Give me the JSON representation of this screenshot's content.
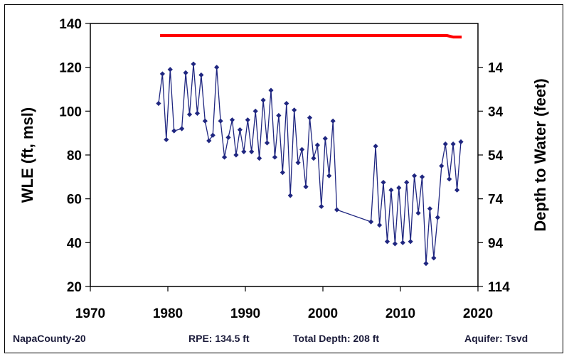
{
  "chart_data": {
    "type": "line",
    "ylabel": "WLE (ft, msl)",
    "y2label": "Depth to Water (feet)",
    "xlim": [
      1970,
      2020
    ],
    "ylim": [
      20,
      140
    ],
    "x_ticks": [
      "1970",
      "1980",
      "1990",
      "2000",
      "2010",
      "2020"
    ],
    "y_ticks": [
      "20",
      "40",
      "60",
      "80",
      "100",
      "120",
      "140"
    ],
    "y2_ticks": [
      "114",
      "94",
      "74",
      "54",
      "34",
      "14"
    ],
    "series": [
      {
        "color": "#ff0000",
        "x": [
          1979,
          2016,
          2016.8,
          2017.9
        ],
        "y": [
          134.5,
          134.5,
          133.8,
          133.8
        ]
      },
      {
        "color": "#1f2680",
        "marker": "diamond",
        "x": [
          1978.8,
          1979.3,
          1979.8,
          1980.3,
          1980.8,
          1981.8,
          1982.3,
          1982.8,
          1983.3,
          1983.8,
          1984.3,
          1984.8,
          1985.3,
          1985.8,
          1986.3,
          1986.8,
          1987.3,
          1987.8,
          1988.3,
          1988.8,
          1989.3,
          1989.8,
          1990.3,
          1990.8,
          1991.3,
          1991.8,
          1992.3,
          1992.8,
          1993.3,
          1993.8,
          1994.3,
          1994.8,
          1995.3,
          1995.8,
          1996.3,
          1996.8,
          1997.3,
          1997.8,
          1998.3,
          1998.8,
          1999.3,
          1999.8,
          2000.3,
          2000.8,
          2001.3,
          2001.8,
          2006.2,
          2006.8,
          2007.3,
          2007.8,
          2008.3,
          2008.8,
          2009.3,
          2009.8,
          2010.3,
          2010.8,
          2011.3,
          2011.8,
          2012.3,
          2012.8,
          2013.3,
          2013.8,
          2014.3,
          2014.8,
          2015.3,
          2015.8,
          2016.3,
          2016.8,
          2017.3,
          2017.8
        ],
        "y": [
          103.5,
          117,
          87,
          119,
          91,
          92,
          117.5,
          98.5,
          121.5,
          99,
          116.5,
          95.5,
          86.5,
          89,
          120,
          95.5,
          79,
          88,
          96,
          80,
          91.5,
          81.5,
          96,
          81.5,
          100,
          78.5,
          105,
          85.5,
          109.5,
          79,
          98,
          72,
          103.5,
          61.5,
          100.5,
          76.5,
          82.5,
          65.5,
          97,
          78.5,
          84.5,
          56.5,
          87.5,
          70.5,
          95.5,
          55,
          49.5,
          84,
          48,
          67.5,
          40.5,
          64,
          39.5,
          65,
          40,
          67.5,
          40.5,
          70.5,
          53.5,
          70,
          30.5,
          55.5,
          33,
          51.5,
          75,
          85,
          69,
          85,
          64,
          86
        ]
      }
    ],
    "annotations": {
      "well_id": "NapaCounty-20",
      "rpe": "RPE: 134.5 ft",
      "total_depth": "Total Depth: 208 ft",
      "aquifer": "Aquifer: Tsvd"
    }
  }
}
